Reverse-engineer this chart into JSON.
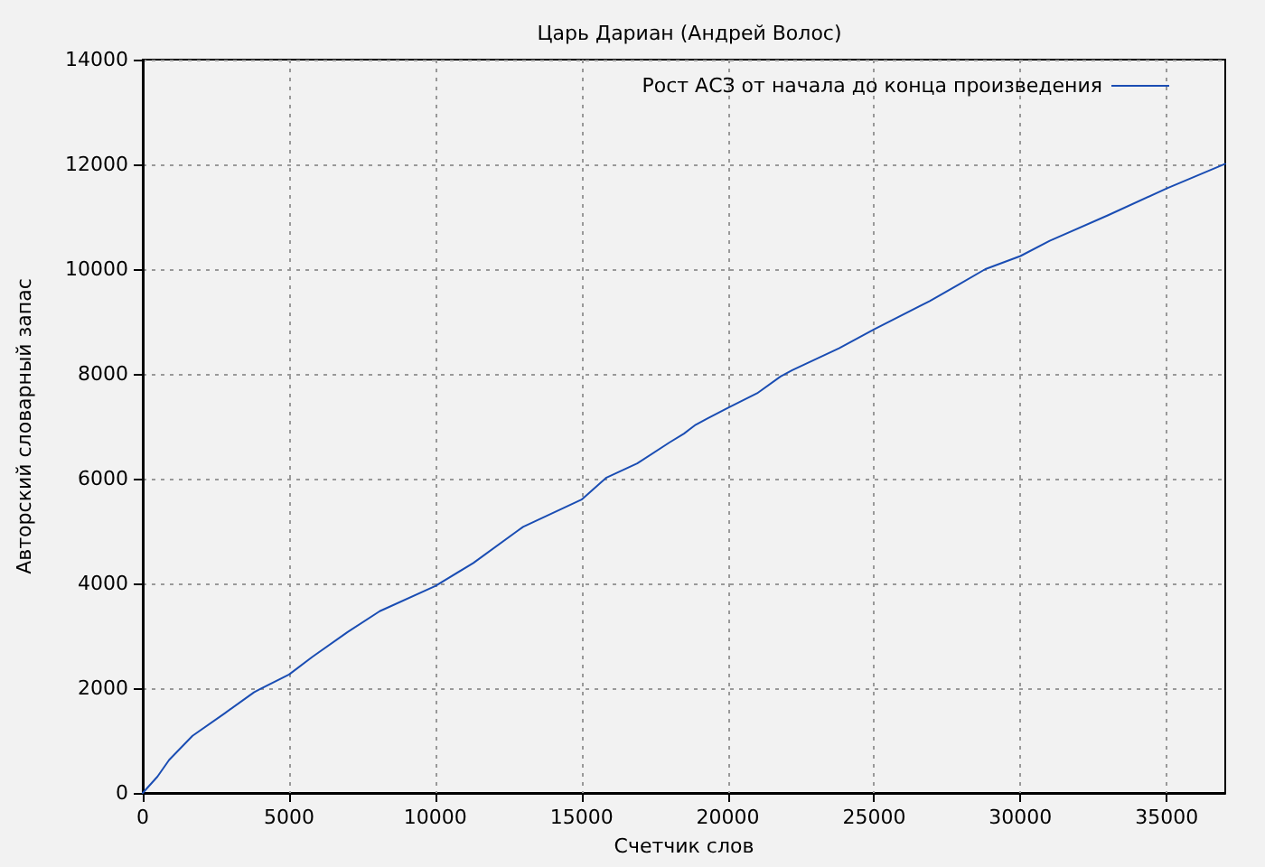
{
  "chart_data": {
    "type": "line",
    "title": "Царь Дариан (Андрей Волос)",
    "xlabel": "Счетчик слов",
    "ylabel": "Авторский словарный запас",
    "x": [
      0,
      500,
      900,
      1700,
      2800,
      3800,
      4000,
      5000,
      5800,
      7000,
      8100,
      10000,
      11300,
      12800,
      13000,
      15000,
      15850,
      16900,
      18000,
      18500,
      18900,
      19300,
      20000,
      21000,
      21800,
      22200,
      23800,
      25000,
      26900,
      27900,
      28800,
      30000,
      31000,
      33000,
      35000,
      37000
    ],
    "series": [
      {
        "name": "Рост АСЗ от начала до конца произведения",
        "color": "#1a4db3",
        "values": [
          0,
          310,
          630,
          1090,
          1520,
          1920,
          1980,
          2260,
          2600,
          3070,
          3470,
          3950,
          4390,
          5000,
          5080,
          5600,
          6020,
          6290,
          6690,
          6860,
          7030,
          7150,
          7350,
          7630,
          7950,
          8070,
          8490,
          8850,
          9390,
          9710,
          10000,
          10250,
          10540,
          11030,
          11540,
          12010
        ]
      }
    ],
    "xlim": [
      0,
      37000
    ],
    "xticks": [
      0,
      5000,
      10000,
      15000,
      20000,
      25000,
      30000,
      35000
    ],
    "ylim": [
      0,
      14000
    ],
    "yticks": [
      0,
      2000,
      4000,
      6000,
      8000,
      10000,
      12000,
      14000
    ],
    "grid": true,
    "legend": "top right",
    "marker": "none",
    "line_style": "solid"
  }
}
